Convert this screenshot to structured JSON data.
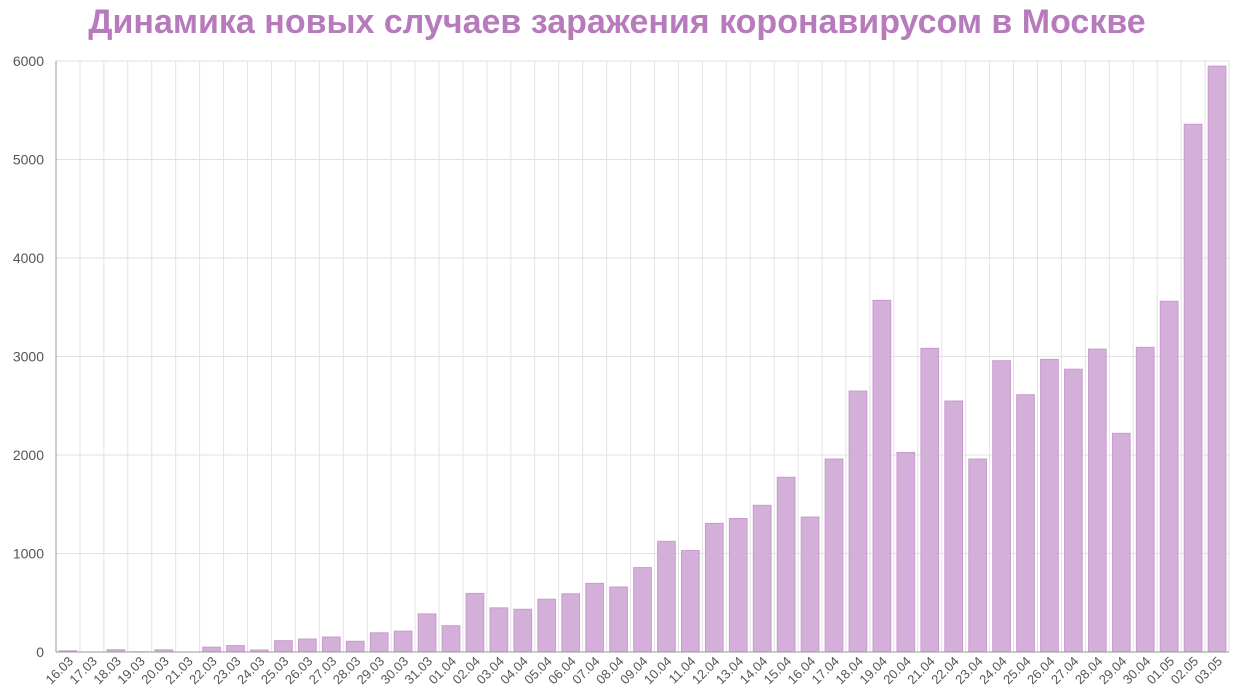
{
  "chart_data": {
    "type": "bar",
    "title": "Динамика новых случаев заражения коронавирусом в Москве",
    "xlabel": "",
    "ylabel": "",
    "ylim": [
      0,
      6000
    ],
    "yticks": [
      0,
      1000,
      2000,
      3000,
      4000,
      5000,
      6000
    ],
    "grid": true,
    "legend": "none",
    "categories": [
      "16.03",
      "17.03",
      "18.03",
      "19.03",
      "20.03",
      "21.03",
      "22.03",
      "23.03",
      "24.03",
      "25.03",
      "26.03",
      "27.03",
      "28.03",
      "29.03",
      "30.03",
      "31.03",
      "01.04",
      "02.04",
      "03.04",
      "04.04",
      "05.04",
      "06.04",
      "07.04",
      "08.04",
      "09.04",
      "10.04",
      "11.04",
      "12.04",
      "13.04",
      "14.04",
      "15.04",
      "16.04",
      "17.04",
      "18.04",
      "19.04",
      "20.04",
      "21.04",
      "22.04",
      "23.04",
      "24.04",
      "25.04",
      "26.04",
      "27.04",
      "28.04",
      "29.04",
      "30.04",
      "01.05",
      "02.05",
      "03.05"
    ],
    "values": [
      12,
      0,
      23,
      2,
      22,
      0,
      49,
      65,
      20,
      115,
      132,
      152,
      109,
      195,
      212,
      387,
      267,
      595,
      448,
      434,
      536,
      591,
      697,
      660,
      857,
      1124,
      1030,
      1306,
      1355,
      1489,
      1774,
      1370,
      1959,
      2649,
      3570,
      2026,
      3083,
      2548,
      1959,
      2957,
      2612,
      2971,
      2871,
      3075,
      2220,
      3093,
      3561,
      5358,
      5948
    ],
    "colors": {
      "bar_fill": "#d4afd9",
      "bar_stroke": "#c79ccd",
      "title": "#b77bbd",
      "axis": "#999999",
      "grid": "#e2e2e2"
    }
  }
}
